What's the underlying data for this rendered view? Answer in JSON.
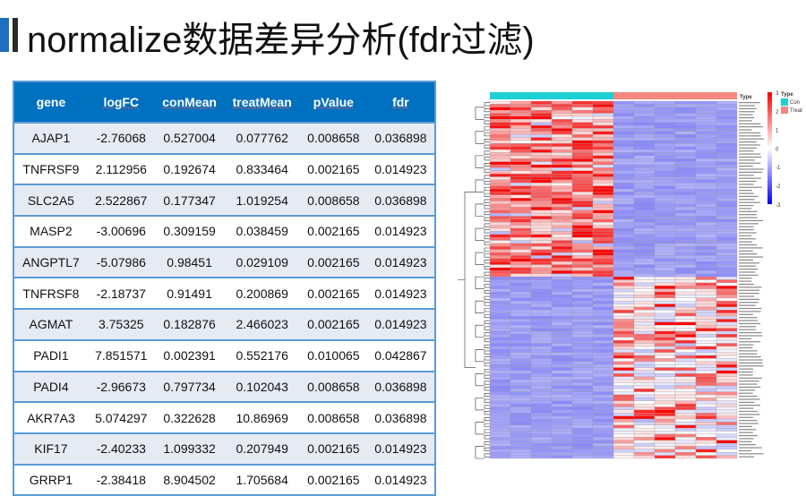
{
  "title": "normalize数据差异分析(fdr过滤)",
  "table": {
    "headers": [
      "gene",
      "logFC",
      "conMean",
      "treatMean",
      "pValue",
      "fdr"
    ],
    "rows": [
      [
        "AJAP1",
        "-2.76068",
        "0.527004",
        "0.077762",
        "0.008658",
        "0.036898"
      ],
      [
        "TNFRSF9",
        "2.112956",
        "0.192674",
        "0.833464",
        "0.002165",
        "0.014923"
      ],
      [
        "SLC2A5",
        "2.522867",
        "0.177347",
        "1.019254",
        "0.008658",
        "0.036898"
      ],
      [
        "MASP2",
        "-3.00696",
        "0.309159",
        "0.038459",
        "0.002165",
        "0.014923"
      ],
      [
        "ANGPTL7",
        "-5.07986",
        "0.98451",
        "0.029109",
        "0.002165",
        "0.014923"
      ],
      [
        "TNFRSF8",
        "-2.18737",
        "0.91491",
        "0.200869",
        "0.002165",
        "0.014923"
      ],
      [
        "AGMAT",
        "3.75325",
        "0.182876",
        "2.466023",
        "0.002165",
        "0.014923"
      ],
      [
        "PADI1",
        "7.851571",
        "0.002391",
        "0.552176",
        "0.010065",
        "0.042867"
      ],
      [
        "PADI4",
        "-2.96673",
        "0.797734",
        "0.102043",
        "0.008658",
        "0.036898"
      ],
      [
        "AKR7A3",
        "5.074297",
        "0.322628",
        "10.86969",
        "0.008658",
        "0.036898"
      ],
      [
        "KIF17",
        "-2.40233",
        "1.099332",
        "0.207949",
        "0.002165",
        "0.014923"
      ],
      [
        "GRRP1",
        "-2.38418",
        "8.904502",
        "1.705684",
        "0.002165",
        "0.014923"
      ]
    ]
  },
  "heatmap": {
    "annotation_title": "Type",
    "legend_title": "Type",
    "groups": [
      {
        "name": "Con",
        "color": "#1ecfd6",
        "n": 6
      },
      {
        "name": "Treat",
        "color": "#f4877f",
        "n": 6
      }
    ],
    "scale_ticks": [
      "3",
      "2",
      "1",
      "0",
      "-1",
      "-2",
      "-3"
    ],
    "colors": {
      "high": "#ff0000",
      "mid": "#ffffff",
      "low": "#0000ff"
    }
  }
}
